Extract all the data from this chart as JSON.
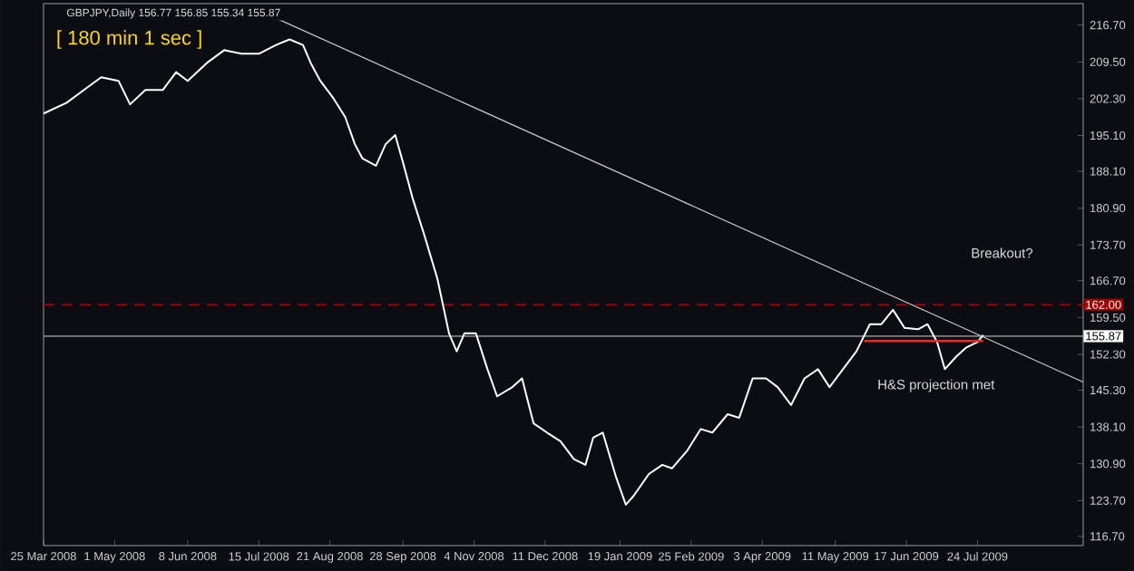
{
  "chart_data": {
    "type": "line",
    "title": "GBPJPY,Daily  156.77 156.85 155.34 155.87",
    "annotations": [
      "[ 180 min 1 sec ]",
      "Breakout?",
      "H&S projection met"
    ],
    "xlim": [
      "2008-03-25",
      "2009-09-17"
    ],
    "xticks": [
      {
        "value": "2008-03-25",
        "label": "25 Mar 2008"
      },
      {
        "value": "2008-05-01",
        "label": "1 May 2008"
      },
      {
        "value": "2008-06-08",
        "label": "8 Jun 2008"
      },
      {
        "value": "2008-07-15",
        "label": "15 Jul 2008"
      },
      {
        "value": "2008-08-21",
        "label": "21 Aug 2008"
      },
      {
        "value": "2008-09-28",
        "label": "28 Sep 2008"
      },
      {
        "value": "2008-11-04",
        "label": "4 Nov 2008"
      },
      {
        "value": "2008-12-11",
        "label": "11 Dec 2008"
      },
      {
        "value": "2009-01-19",
        "label": "19 Jan 2009"
      },
      {
        "value": "2009-02-25",
        "label": "25 Feb 2009"
      },
      {
        "value": "2009-04-03",
        "label": "3 Apr 2009"
      },
      {
        "value": "2009-05-11",
        "label": "11 May 2009"
      },
      {
        "value": "2009-06-17",
        "label": "17 Jun 2009"
      },
      {
        "value": "2009-07-24",
        "label": "24 Jul 2009"
      }
    ],
    "ylim": [
      114.9,
      220.9
    ],
    "yticks": [
      {
        "value": 216.7,
        "label": "216.70"
      },
      {
        "value": 209.5,
        "label": "209.50"
      },
      {
        "value": 202.3,
        "label": "202.30"
      },
      {
        "value": 195.1,
        "label": "195.10"
      },
      {
        "value": 188.1,
        "label": "188.10"
      },
      {
        "value": 180.9,
        "label": "180.90"
      },
      {
        "value": 173.7,
        "label": "173.70"
      },
      {
        "value": 166.7,
        "label": "166.70"
      },
      {
        "value": 159.5,
        "label": "159.50"
      },
      {
        "value": 152.3,
        "label": "152.30"
      },
      {
        "value": 145.3,
        "label": "145.30"
      },
      {
        "value": 138.1,
        "label": "138.10"
      },
      {
        "value": 130.9,
        "label": "130.90"
      },
      {
        "value": 123.7,
        "label": "123.70"
      },
      {
        "value": 116.7,
        "label": "116.70"
      }
    ],
    "series": [
      {
        "color": "#ffffff",
        "x": [
          "2008-03-25",
          "2008-04-06",
          "2008-04-15",
          "2008-04-24",
          "2008-05-03",
          "2008-05-09",
          "2008-05-17",
          "2008-05-26",
          "2008-06-02",
          "2008-06-08",
          "2008-06-18",
          "2008-06-27",
          "2008-07-06",
          "2008-07-15",
          "2008-07-24",
          "2008-07-31",
          "2008-08-07",
          "2008-08-11",
          "2008-08-16",
          "2008-08-23",
          "2008-08-29",
          "2008-09-03",
          "2008-09-07",
          "2008-09-14",
          "2008-09-19",
          "2008-09-24",
          "2008-09-28",
          "2008-10-03",
          "2008-10-09",
          "2008-10-16",
          "2008-10-22",
          "2008-10-26",
          "2008-10-30",
          "2008-11-05",
          "2008-11-11",
          "2008-11-16",
          "2008-11-24",
          "2008-11-29",
          "2008-12-05",
          "2008-12-12",
          "2008-12-19",
          "2008-12-26",
          "2009-01-01",
          "2009-01-05",
          "2009-01-10",
          "2009-01-17",
          "2009-01-22",
          "2009-01-26",
          "2009-02-03",
          "2009-02-10",
          "2009-02-15",
          "2009-02-23",
          "2009-03-02",
          "2009-03-08",
          "2009-03-16",
          "2009-03-22",
          "2009-03-29",
          "2009-04-05",
          "2009-04-11",
          "2009-04-18",
          "2009-04-25",
          "2009-05-02",
          "2009-05-08",
          "2009-05-15",
          "2009-05-22",
          "2009-05-29",
          "2009-06-04",
          "2009-06-10",
          "2009-06-16",
          "2009-06-23",
          "2009-06-28",
          "2009-07-03",
          "2009-07-07",
          "2009-07-13",
          "2009-07-18",
          "2009-07-24",
          "2009-07-27"
        ],
        "values": [
          199.4,
          201.5,
          204.0,
          206.5,
          205.8,
          201.2,
          204.0,
          204.0,
          207.5,
          205.8,
          209.3,
          211.8,
          211.1,
          211.1,
          212.8,
          213.9,
          212.8,
          209.3,
          205.8,
          202.3,
          198.7,
          193.4,
          190.6,
          189.2,
          193.4,
          195.2,
          189.9,
          182.9,
          175.8,
          167.0,
          156.4,
          152.9,
          156.4,
          156.4,
          149.4,
          144.1,
          145.9,
          147.6,
          138.8,
          137.0,
          135.3,
          131.8,
          130.7,
          136.0,
          137.0,
          128.2,
          122.9,
          124.6,
          128.9,
          130.7,
          130.0,
          133.5,
          137.7,
          137.0,
          140.6,
          139.9,
          147.6,
          147.6,
          145.9,
          142.4,
          147.6,
          149.4,
          145.9,
          149.4,
          152.9,
          158.2,
          158.2,
          161.0,
          157.5,
          157.2,
          158.2,
          154.7,
          149.4,
          151.9,
          153.6,
          154.7,
          156.1
        ]
      },
      {
        "color": "#c8c8c8",
        "x": [
          "2008-07-13",
          "2009-09-17"
        ],
        "values": [
          219.9,
          146.9
        ]
      },
      {
        "color": "#ff2020",
        "x": [
          "2009-05-26",
          "2009-07-27"
        ],
        "values": [
          154.9,
          154.9
        ]
      }
    ],
    "ref_lines": [
      {
        "axis": "y",
        "value": 162.0,
        "label": "162.00",
        "color": "#a00000",
        "line_style": "dashed"
      },
      {
        "axis": "y",
        "value": 155.87,
        "label": "155.87",
        "color": "#808080",
        "line_style": "solid"
      }
    ]
  }
}
